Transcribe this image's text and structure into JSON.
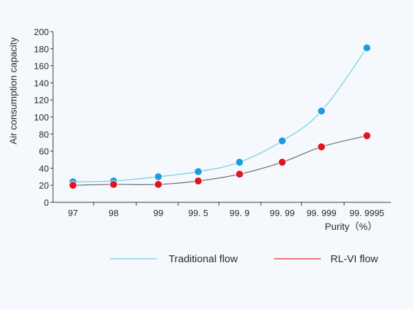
{
  "chart_data": {
    "type": "line",
    "title": "",
    "xlabel": "Purity（%）",
    "ylabel": "Air consumption capacity",
    "categories": [
      "97",
      "98",
      "99",
      "99.5",
      "99.9",
      "99.99",
      "99.999",
      "99.9995"
    ],
    "category_labels": [
      "97",
      "98",
      "99",
      "99. 5",
      "99. 9",
      "99. 99",
      "99. 999",
      "99. 9995"
    ],
    "ylim": [
      0,
      200
    ],
    "yticks": [
      0,
      20,
      40,
      60,
      80,
      100,
      120,
      140,
      160,
      180,
      200
    ],
    "grid": false,
    "legend_position": "bottom",
    "series": [
      {
        "name": "Traditional flow",
        "color": "#6ccfe0",
        "marker_color": "#1e9be3",
        "values": [
          24,
          25,
          30,
          36,
          47,
          72,
          107,
          181
        ]
      },
      {
        "name": "RL-VI flow",
        "color": "#666666",
        "marker_color": "#e3141e",
        "values": [
          20,
          21,
          21,
          25,
          33,
          47,
          65,
          78
        ]
      }
    ]
  },
  "legend": {
    "items": [
      {
        "label": "Traditional flow",
        "line_color": "#6ccfe0"
      },
      {
        "label": "RL-VI flow",
        "line_color": "#e02a2a"
      }
    ]
  }
}
